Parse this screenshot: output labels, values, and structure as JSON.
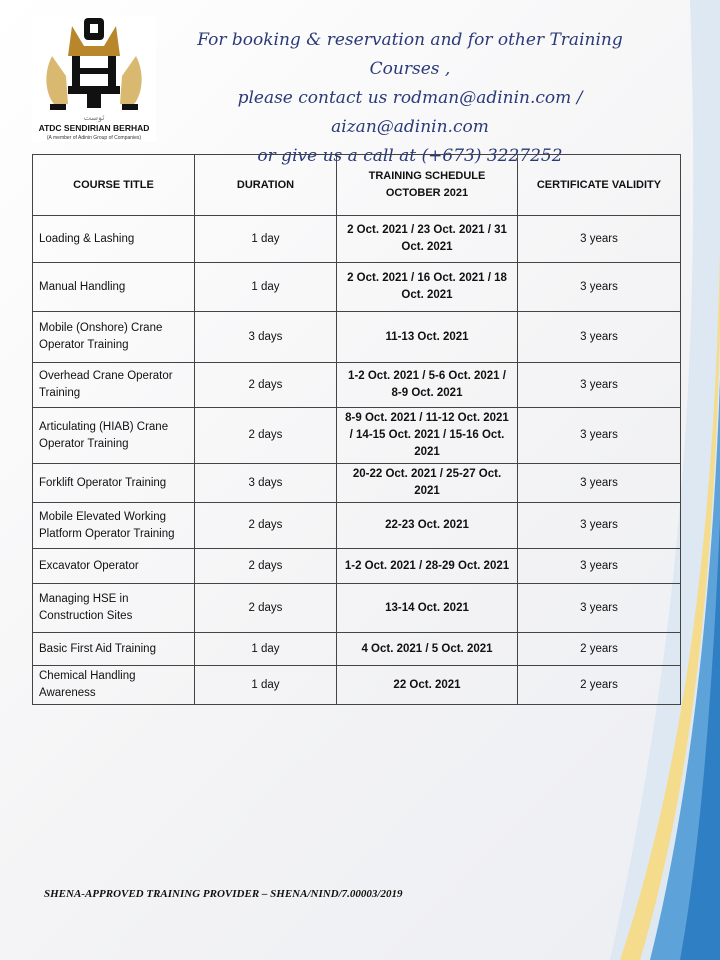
{
  "logo": {
    "company": "ATDC SENDIRIAN BERHAD",
    "tagline": "(A member of Adinin Group of Companies)",
    "colors": {
      "gold": "#b8862b",
      "black": "#111111"
    }
  },
  "header": {
    "line1": "For booking & reservation and for other Training Courses ,",
    "line2": "please contact us rodman@adinin.com / aizan@adinin.com",
    "line3": "or give us a call at (+673) 3227252"
  },
  "table": {
    "headers": [
      "COURSE TITLE",
      "DURATION",
      "TRAINING SCHEDULE OCTOBER 2021",
      "CERTIFICATE VALIDITY"
    ],
    "rows": [
      [
        "Loading & Lashing",
        "1 day",
        "2 Oct. 2021 / 23 Oct. 2021 / 31 Oct. 2021",
        "3 years"
      ],
      [
        "Manual Handling",
        "1 day",
        "2 Oct. 2021 / 16 Oct. 2021 / 18 Oct. 2021",
        "3 years"
      ],
      [
        "Mobile (Onshore) Crane Operator Training",
        "3 days",
        "11-13 Oct. 2021",
        "3 years"
      ],
      [
        "Overhead Crane Operator Training",
        "2 days",
        "1-2 Oct. 2021 / 5-6 Oct. 2021 / 8-9 Oct. 2021",
        "3 years"
      ],
      [
        "Articulating (HIAB) Crane Operator Training",
        "2 days",
        "8-9 Oct. 2021 / 11-12 Oct. 2021 / 14-15 Oct. 2021 / 15-16 Oct. 2021",
        "3 years"
      ],
      [
        "Forklift Operator Training",
        "3 days",
        "20-22 Oct. 2021 / 25-27 Oct. 2021",
        "3 years"
      ],
      [
        "Mobile Elevated Working Platform Operator Training",
        "2 days",
        "22-23 Oct. 2021",
        "3 years"
      ],
      [
        "Excavator Operator",
        "2 days",
        "1-2 Oct. 2021 / 28-29 Oct. 2021",
        "3 years"
      ],
      [
        "Managing HSE in Construction Sites",
        "2 days",
        "13-14 Oct. 2021",
        "3 years"
      ],
      [
        "Basic First Aid Training",
        "1 day",
        "4 Oct. 2021 / 5 Oct. 2021",
        "2 years"
      ],
      [
        "Chemical Handling Awareness",
        "1 day",
        "22 Oct. 2021",
        "2 years"
      ]
    ]
  },
  "footer": "SHENA-APPROVED TRAINING PROVIDER – SHENA/NIND/7.00003/2019"
}
